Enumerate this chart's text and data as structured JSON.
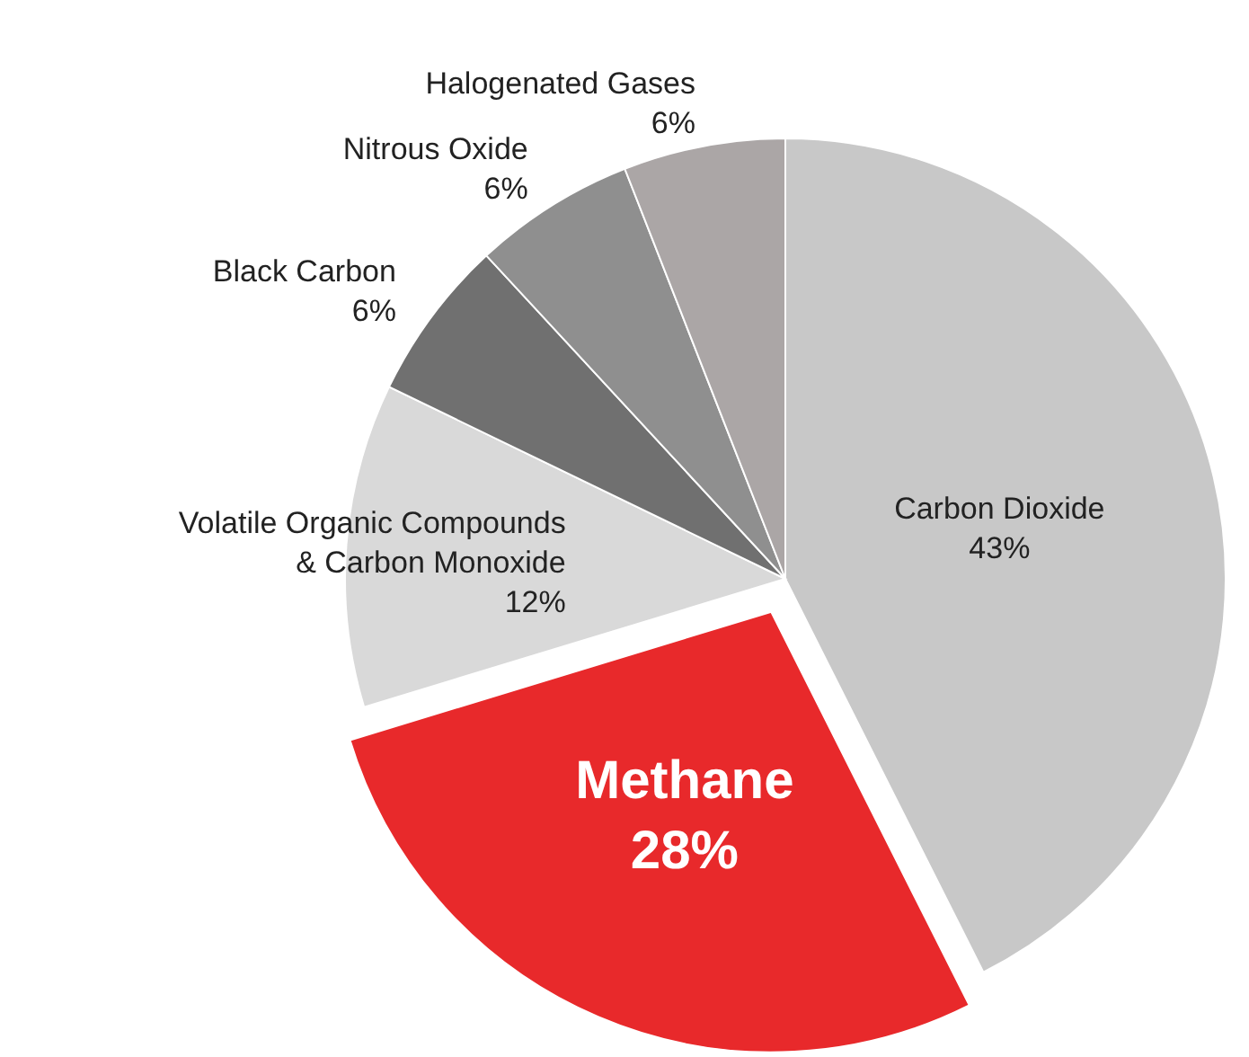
{
  "chart_data": {
    "type": "pie",
    "categories": [
      "Carbon Dioxide",
      "Methane",
      "Volatile Organic Compounds & Carbon Monoxide",
      "Black Carbon",
      "Nitrous Oxide",
      "Halogenated Gases"
    ],
    "values": [
      43,
      28,
      12,
      6,
      6,
      6
    ],
    "value_labels": [
      "43%",
      "28%",
      "12%",
      "6%",
      "6%",
      "6%"
    ],
    "colors": [
      "#c8c8c8",
      "#e8292b",
      "#d9d9d9",
      "#707070",
      "#8f8f8f",
      "#aba6a6"
    ]
  }
}
